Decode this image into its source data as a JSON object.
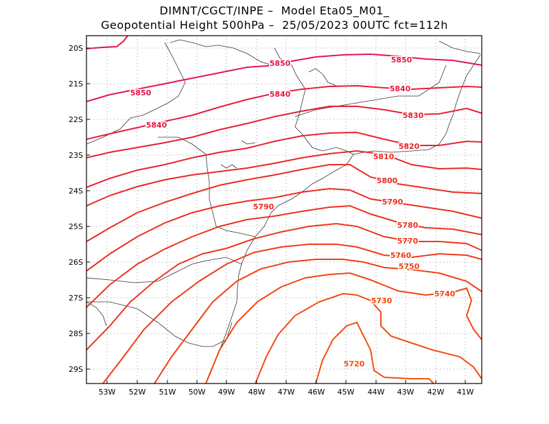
{
  "title": {
    "line1": "DIMNT/CGCT/INPE –  Model Eta05_M01_",
    "line2": "Geopotential Height 500hPa –  25/05/2023 00UTC fct=112h"
  },
  "axes": {
    "y_ticks": [
      "20S",
      "21S",
      "22S",
      "23S",
      "24S",
      "25S",
      "26S",
      "27S",
      "28S",
      "29S"
    ],
    "x_ticks": [
      "53W",
      "52W",
      "51W",
      "50W",
      "49W",
      "48W",
      "47W",
      "46W",
      "45W",
      "44W",
      "43W",
      "42W",
      "41W"
    ]
  },
  "contours": [
    {
      "value": 5850,
      "color": "#e5154a",
      "labels": [
        "5850",
        "5850",
        "5850"
      ]
    },
    {
      "value": 5840,
      "color": "#e61b3f",
      "labels": [
        "5840",
        "5840",
        "5840"
      ]
    },
    {
      "value": 5830,
      "color": "#e61f35",
      "labels": [
        "5830"
      ]
    },
    {
      "value": 5820,
      "color": "#e8222d",
      "labels": [
        "5820"
      ]
    },
    {
      "value": 5810,
      "color": "#e92626",
      "labels": [
        "5810"
      ]
    },
    {
      "value": 5800,
      "color": "#ea2a22",
      "labels": [
        "5800"
      ]
    },
    {
      "value": 5790,
      "color": "#eb2d1f",
      "labels": [
        "5790",
        "5790"
      ]
    },
    {
      "value": 5780,
      "color": "#ec311d",
      "labels": [
        "5780"
      ]
    },
    {
      "value": 5770,
      "color": "#ed361b",
      "labels": [
        "5770"
      ]
    },
    {
      "value": 5760,
      "color": "#ee3a18",
      "labels": [
        "5760"
      ]
    },
    {
      "value": 5750,
      "color": "#f03f14",
      "labels": [
        "5750"
      ]
    },
    {
      "value": 5740,
      "color": "#f24510",
      "labels": [
        "5740"
      ]
    },
    {
      "value": 5730,
      "color": "#f44a0d",
      "labels": [
        "5730"
      ]
    },
    {
      "value": 5720,
      "color": "#f5500a",
      "labels": [
        "5720"
      ]
    }
  ]
}
